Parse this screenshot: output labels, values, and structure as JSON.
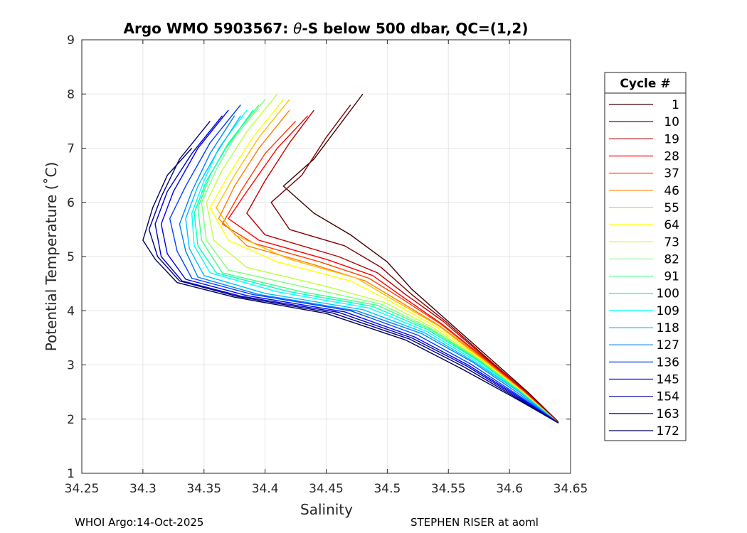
{
  "chart_data": {
    "type": "line",
    "title_parts": {
      "prefix": "Argo WMO 5903567: ",
      "symbol": "θ",
      "suffix": "-S below 500 dbar,  QC=(1,2)"
    },
    "xlabel": "Salinity",
    "ylabel": "Potential Temperature (˚C)",
    "xlim": [
      34.25,
      34.65
    ],
    "ylim": [
      1,
      9
    ],
    "x_ticks": [
      "34.25",
      "34.3",
      "34.35",
      "34.4",
      "34.45",
      "34.5",
      "34.55",
      "34.6",
      "34.65"
    ],
    "y_ticks": [
      "1",
      "2",
      "3",
      "4",
      "5",
      "6",
      "7",
      "8",
      "9"
    ],
    "grid": true,
    "legend": {
      "title": "Cycle #",
      "placement": "outside-right",
      "entries": [
        "1",
        "10",
        "19",
        "28",
        "37",
        "46",
        "55",
        "64",
        "73",
        "82",
        "91",
        "100",
        "109",
        "118",
        "127",
        "136",
        "145",
        "154",
        "163",
        "172"
      ],
      "colors": [
        "#400000",
        "#800000",
        "#bf0000",
        "#ff0000",
        "#ff4000",
        "#ff8000",
        "#ffbf00",
        "#ffff00",
        "#c0ff40",
        "#80ff80",
        "#40ff80",
        "#00ffbf",
        "#00ffff",
        "#00bfff",
        "#0080ff",
        "#0040ff",
        "#0000ff",
        "#0000bf",
        "#000080",
        "#000060"
      ]
    },
    "series": [
      {
        "name": "1",
        "color": "#400000",
        "points": [
          [
            34.48,
            8.0
          ],
          [
            34.46,
            7.4
          ],
          [
            34.44,
            6.8
          ],
          [
            34.415,
            6.3
          ],
          [
            34.44,
            5.8
          ],
          [
            34.47,
            5.4
          ],
          [
            34.5,
            4.9
          ],
          [
            34.52,
            4.4
          ],
          [
            34.55,
            3.8
          ],
          [
            34.585,
            3.1
          ],
          [
            34.615,
            2.5
          ],
          [
            34.64,
            1.95
          ]
        ]
      },
      {
        "name": "10",
        "color": "#800000",
        "points": [
          [
            34.47,
            7.8
          ],
          [
            34.45,
            7.2
          ],
          [
            34.43,
            6.5
          ],
          [
            34.405,
            6.0
          ],
          [
            34.42,
            5.5
          ],
          [
            34.465,
            5.2
          ],
          [
            34.495,
            4.8
          ],
          [
            34.52,
            4.3
          ],
          [
            34.548,
            3.8
          ],
          [
            34.583,
            3.1
          ],
          [
            34.614,
            2.5
          ],
          [
            34.64,
            1.95
          ]
        ]
      },
      {
        "name": "19",
        "color": "#bf0000",
        "points": [
          [
            34.44,
            7.7
          ],
          [
            34.42,
            7.1
          ],
          [
            34.4,
            6.4
          ],
          [
            34.385,
            5.8
          ],
          [
            34.4,
            5.4
          ],
          [
            34.46,
            5.0
          ],
          [
            34.492,
            4.7
          ],
          [
            34.515,
            4.3
          ],
          [
            34.546,
            3.8
          ],
          [
            34.582,
            3.1
          ],
          [
            34.614,
            2.5
          ],
          [
            34.64,
            1.93
          ]
        ]
      },
      {
        "name": "28",
        "color": "#ff0000",
        "points": [
          [
            34.435,
            7.6
          ],
          [
            34.41,
            7.0
          ],
          [
            34.385,
            6.2
          ],
          [
            34.37,
            5.7
          ],
          [
            34.395,
            5.3
          ],
          [
            34.45,
            4.95
          ],
          [
            34.488,
            4.65
          ],
          [
            34.513,
            4.25
          ],
          [
            34.545,
            3.75
          ],
          [
            34.581,
            3.1
          ],
          [
            34.613,
            2.5
          ],
          [
            34.64,
            1.93
          ]
        ]
      },
      {
        "name": "37",
        "color": "#ff4000",
        "points": [
          [
            34.425,
            7.5
          ],
          [
            34.4,
            6.9
          ],
          [
            34.38,
            6.2
          ],
          [
            34.365,
            5.6
          ],
          [
            34.39,
            5.25
          ],
          [
            34.445,
            4.9
          ],
          [
            34.485,
            4.6
          ],
          [
            34.51,
            4.25
          ],
          [
            34.544,
            3.75
          ],
          [
            34.58,
            3.1
          ],
          [
            34.612,
            2.5
          ],
          [
            34.64,
            1.93
          ]
        ]
      },
      {
        "name": "46",
        "color": "#ff8000",
        "points": [
          [
            34.42,
            7.7
          ],
          [
            34.395,
            7.0
          ],
          [
            34.375,
            6.3
          ],
          [
            34.362,
            5.7
          ],
          [
            34.385,
            5.2
          ],
          [
            34.44,
            4.85
          ],
          [
            34.482,
            4.55
          ],
          [
            34.508,
            4.2
          ],
          [
            34.543,
            3.72
          ],
          [
            34.579,
            3.1
          ],
          [
            34.612,
            2.5
          ],
          [
            34.64,
            1.93
          ]
        ]
      },
      {
        "name": "55",
        "color": "#ffbf00",
        "points": [
          [
            34.42,
            7.9
          ],
          [
            34.395,
            7.2
          ],
          [
            34.375,
            6.5
          ],
          [
            34.36,
            5.9
          ],
          [
            34.375,
            5.4
          ],
          [
            34.42,
            4.95
          ],
          [
            34.475,
            4.6
          ],
          [
            34.505,
            4.2
          ],
          [
            34.542,
            3.72
          ],
          [
            34.578,
            3.1
          ],
          [
            34.611,
            2.5
          ],
          [
            34.64,
            1.93
          ]
        ]
      },
      {
        "name": "64",
        "color": "#ffff00",
        "points": [
          [
            34.415,
            7.9
          ],
          [
            34.39,
            7.2
          ],
          [
            34.37,
            6.5
          ],
          [
            34.355,
            5.9
          ],
          [
            34.37,
            5.3
          ],
          [
            34.41,
            4.9
          ],
          [
            34.47,
            4.55
          ],
          [
            34.502,
            4.18
          ],
          [
            34.54,
            3.7
          ],
          [
            34.577,
            3.1
          ],
          [
            34.611,
            2.5
          ],
          [
            34.64,
            1.93
          ]
        ]
      },
      {
        "name": "73",
        "color": "#c0ff40",
        "points": [
          [
            34.41,
            8.0
          ],
          [
            34.385,
            7.3
          ],
          [
            34.365,
            6.6
          ],
          [
            34.352,
            6.0
          ],
          [
            34.358,
            5.3
          ],
          [
            34.385,
            4.8
          ],
          [
            34.45,
            4.45
          ],
          [
            34.498,
            4.15
          ],
          [
            34.538,
            3.68
          ],
          [
            34.576,
            3.1
          ],
          [
            34.61,
            2.5
          ],
          [
            34.64,
            1.93
          ]
        ]
      },
      {
        "name": "82",
        "color": "#80ff80",
        "points": [
          [
            34.4,
            7.9
          ],
          [
            34.375,
            7.2
          ],
          [
            34.36,
            6.6
          ],
          [
            34.348,
            6.0
          ],
          [
            34.352,
            5.3
          ],
          [
            34.37,
            4.75
          ],
          [
            34.44,
            4.4
          ],
          [
            34.495,
            4.12
          ],
          [
            34.536,
            3.67
          ],
          [
            34.575,
            3.1
          ],
          [
            34.61,
            2.5
          ],
          [
            34.64,
            1.93
          ]
        ]
      },
      {
        "name": "91",
        "color": "#40ff80",
        "points": [
          [
            34.395,
            7.8
          ],
          [
            34.37,
            7.1
          ],
          [
            34.355,
            6.5
          ],
          [
            34.345,
            5.9
          ],
          [
            34.348,
            5.3
          ],
          [
            34.365,
            4.7
          ],
          [
            34.43,
            4.35
          ],
          [
            34.492,
            4.1
          ],
          [
            34.535,
            3.66
          ],
          [
            34.574,
            3.1
          ],
          [
            34.609,
            2.5
          ],
          [
            34.64,
            1.93
          ]
        ]
      },
      {
        "name": "100",
        "color": "#00ffbf",
        "points": [
          [
            34.39,
            7.7
          ],
          [
            34.368,
            7.0
          ],
          [
            34.352,
            6.4
          ],
          [
            34.342,
            5.8
          ],
          [
            34.345,
            5.2
          ],
          [
            34.36,
            4.7
          ],
          [
            34.42,
            4.35
          ],
          [
            34.488,
            4.08
          ],
          [
            34.533,
            3.65
          ],
          [
            34.573,
            3.1
          ],
          [
            34.609,
            2.5
          ],
          [
            34.64,
            1.93
          ]
        ]
      },
      {
        "name": "109",
        "color": "#00ffff",
        "points": [
          [
            34.385,
            7.7
          ],
          [
            34.362,
            7.0
          ],
          [
            34.35,
            6.4
          ],
          [
            34.34,
            5.8
          ],
          [
            34.342,
            5.2
          ],
          [
            34.355,
            4.7
          ],
          [
            34.41,
            4.35
          ],
          [
            34.485,
            4.05
          ],
          [
            34.532,
            3.62
          ],
          [
            34.572,
            3.08
          ],
          [
            34.608,
            2.5
          ],
          [
            34.64,
            1.93
          ]
        ]
      },
      {
        "name": "118",
        "color": "#00bfff",
        "points": [
          [
            34.38,
            7.6
          ],
          [
            34.36,
            6.9
          ],
          [
            34.345,
            6.3
          ],
          [
            34.335,
            5.7
          ],
          [
            34.338,
            5.15
          ],
          [
            34.35,
            4.65
          ],
          [
            34.4,
            4.32
          ],
          [
            34.48,
            4.02
          ],
          [
            34.53,
            3.6
          ],
          [
            34.571,
            3.06
          ],
          [
            34.608,
            2.5
          ],
          [
            34.64,
            1.93
          ]
        ]
      },
      {
        "name": "127",
        "color": "#0080ff",
        "points": [
          [
            34.375,
            7.6
          ],
          [
            34.355,
            6.9
          ],
          [
            34.34,
            6.2
          ],
          [
            34.33,
            5.6
          ],
          [
            34.335,
            5.1
          ],
          [
            34.345,
            4.62
          ],
          [
            34.395,
            4.3
          ],
          [
            34.475,
            4.0
          ],
          [
            34.528,
            3.58
          ],
          [
            34.57,
            3.05
          ],
          [
            34.607,
            2.48
          ],
          [
            34.64,
            1.93
          ]
        ]
      },
      {
        "name": "136",
        "color": "#0040ff",
        "points": [
          [
            34.38,
            7.8
          ],
          [
            34.355,
            7.1
          ],
          [
            34.335,
            6.3
          ],
          [
            34.322,
            5.7
          ],
          [
            34.328,
            5.1
          ],
          [
            34.34,
            4.6
          ],
          [
            34.39,
            4.3
          ],
          [
            34.47,
            4.0
          ],
          [
            34.525,
            3.55
          ],
          [
            34.568,
            3.02
          ],
          [
            34.606,
            2.46
          ],
          [
            34.64,
            1.93
          ]
        ]
      },
      {
        "name": "145",
        "color": "#0000ff",
        "points": [
          [
            34.37,
            7.7
          ],
          [
            34.345,
            7.0
          ],
          [
            34.325,
            6.2
          ],
          [
            34.315,
            5.6
          ],
          [
            34.32,
            5.05
          ],
          [
            34.335,
            4.58
          ],
          [
            34.385,
            4.28
          ],
          [
            34.465,
            3.98
          ],
          [
            34.522,
            3.52
          ],
          [
            34.566,
            3.0
          ],
          [
            34.605,
            2.45
          ],
          [
            34.64,
            1.93
          ]
        ]
      },
      {
        "name": "154",
        "color": "#0000bf",
        "points": [
          [
            34.365,
            7.6
          ],
          [
            34.34,
            6.9
          ],
          [
            34.32,
            6.2
          ],
          [
            34.31,
            5.6
          ],
          [
            34.315,
            5.0
          ],
          [
            34.332,
            4.55
          ],
          [
            34.38,
            4.27
          ],
          [
            34.46,
            3.97
          ],
          [
            34.52,
            3.5
          ],
          [
            34.565,
            2.98
          ],
          [
            34.604,
            2.44
          ],
          [
            34.64,
            1.93
          ]
        ]
      },
      {
        "name": "163",
        "color": "#000080",
        "points": [
          [
            34.355,
            7.5
          ],
          [
            34.33,
            6.8
          ],
          [
            34.315,
            6.1
          ],
          [
            34.305,
            5.5
          ],
          [
            34.312,
            5.0
          ],
          [
            34.33,
            4.55
          ],
          [
            34.378,
            4.26
          ],
          [
            34.455,
            3.96
          ],
          [
            34.518,
            3.48
          ],
          [
            34.563,
            2.96
          ],
          [
            34.603,
            2.43
          ],
          [
            34.64,
            1.93
          ]
        ]
      },
      {
        "name": "172",
        "color": "#000060",
        "points": [
          [
            34.34,
            7.0
          ],
          [
            34.32,
            6.5
          ],
          [
            34.308,
            5.9
          ],
          [
            34.3,
            5.3
          ],
          [
            34.31,
            4.95
          ],
          [
            34.328,
            4.52
          ],
          [
            34.375,
            4.25
          ],
          [
            34.45,
            3.95
          ],
          [
            34.515,
            3.46
          ],
          [
            34.56,
            2.94
          ],
          [
            34.602,
            2.42
          ],
          [
            34.64,
            1.93
          ]
        ]
      }
    ]
  },
  "footer": {
    "left": "WHOI Argo:14-Oct-2025",
    "right": "STEPHEN RISER at aoml"
  }
}
